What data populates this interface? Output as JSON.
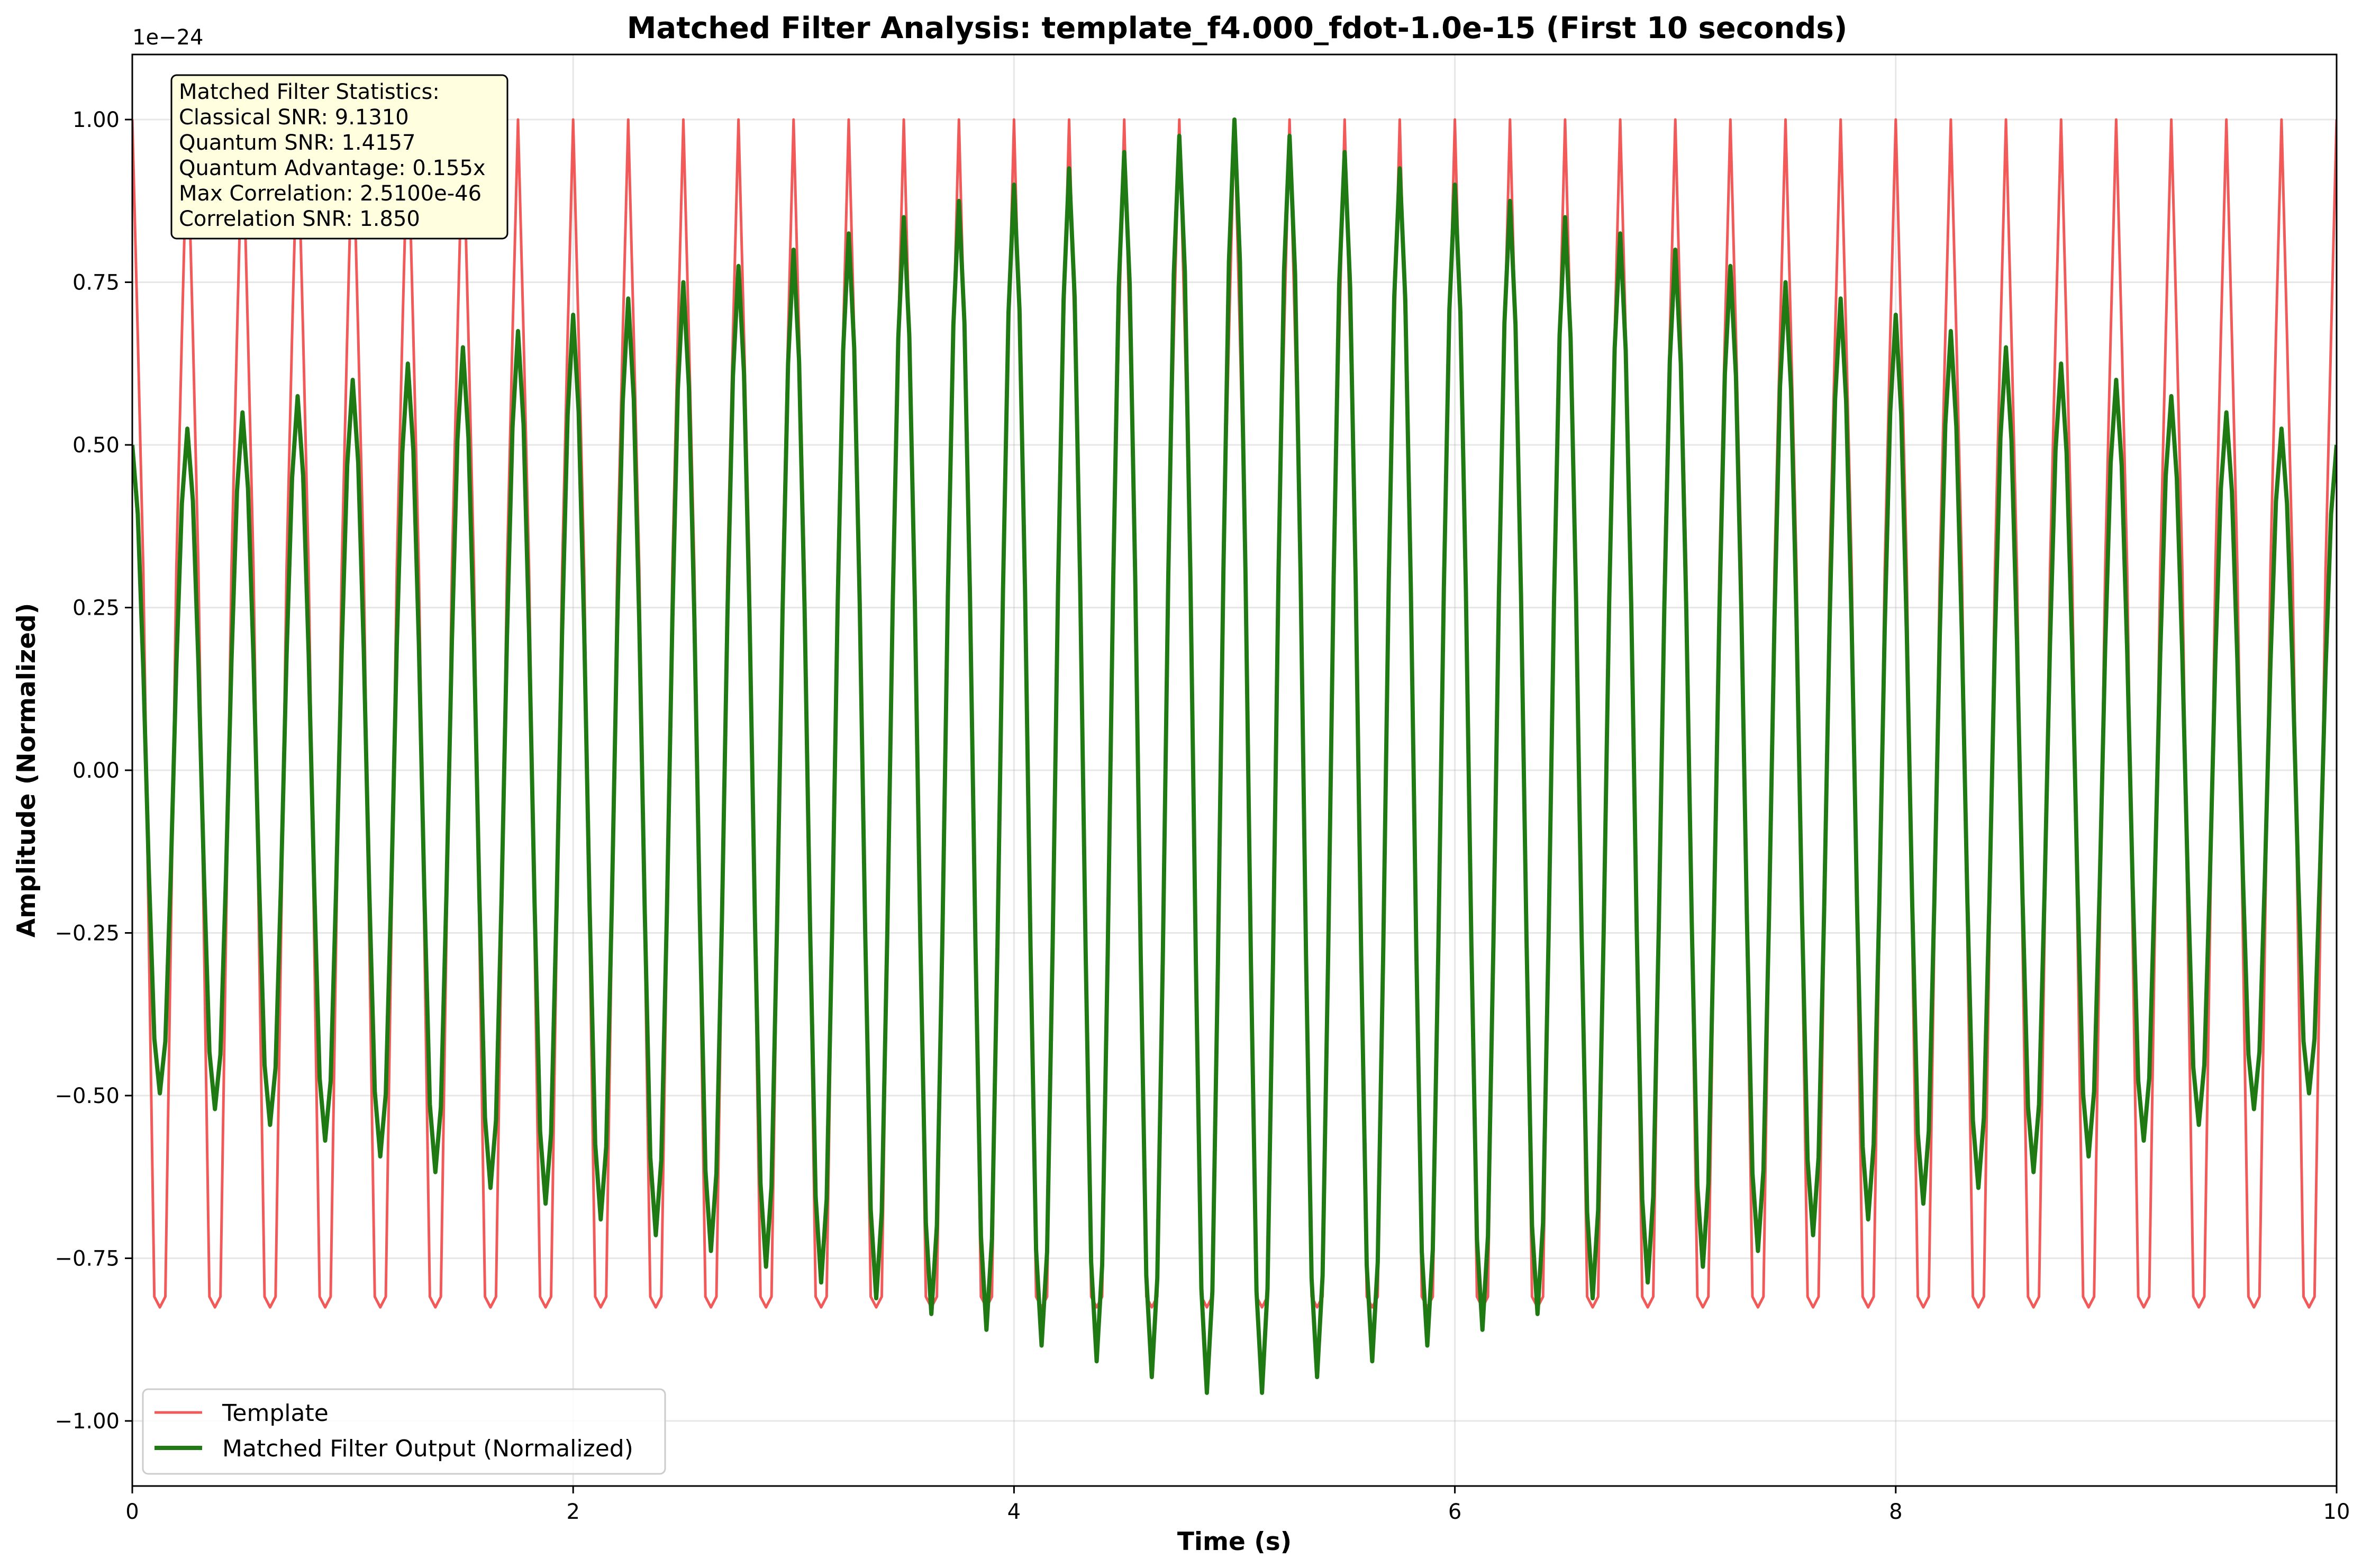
{
  "chart_data": {
    "type": "line",
    "title": "Matched Filter Analysis: template_f4.000_fdot-1.0e-15 (First 10 seconds)",
    "xlabel": "Time (s)",
    "ylabel": "Amplitude (Normalized)",
    "y_offset_label": "1e−24",
    "xlim": [
      0,
      10
    ],
    "ylim": [
      -1.1,
      1.1
    ],
    "x_ticks": [
      0,
      2,
      4,
      6,
      8,
      10
    ],
    "x_tick_labels": [
      "0",
      "2",
      "4",
      "6",
      "8",
      "10"
    ],
    "y_ticks": [
      -1.0,
      -0.75,
      -0.5,
      -0.25,
      0.0,
      0.25,
      0.5,
      0.75,
      1.0
    ],
    "y_tick_labels": [
      "−1.00",
      "−0.75",
      "−0.50",
      "−0.25",
      "0.00",
      "0.25",
      "0.50",
      "0.75",
      "1.00"
    ],
    "grid": true,
    "legend_position": "lower-left",
    "sample_rate_hz": 40,
    "series": [
      {
        "name": "Template",
        "color": "#f03c3c",
        "description": "cosine, f = 4 Hz, unit amplitude",
        "frequency_hz": 4.0,
        "amplitude": 1.0,
        "x_start": 0,
        "x_end": 10
      },
      {
        "name": "Matched Filter Output (Normalized)",
        "color": "#1f7a14",
        "description": "cosine, f = 4 Hz, amplitude envelope rising from 0.5 at t=0 to 1.0 at t=5 and back to 0.5 at t=10",
        "frequency_hz": 4.0,
        "envelope": {
          "x": [
            0,
            5,
            10
          ],
          "y": [
            0.5,
            1.0,
            0.5
          ]
        },
        "x_start": 0,
        "x_end": 10
      }
    ],
    "annotations": {
      "stats_box": [
        "Matched Filter Statistics:",
        "Classical SNR: 9.1310",
        "Quantum SNR: 1.4157",
        "Quantum Advantage: 0.155x",
        "Max Correlation: 2.5100e-46",
        "Correlation SNR: 1.850"
      ],
      "stats_box_facecolor": "#ffffe0"
    }
  }
}
